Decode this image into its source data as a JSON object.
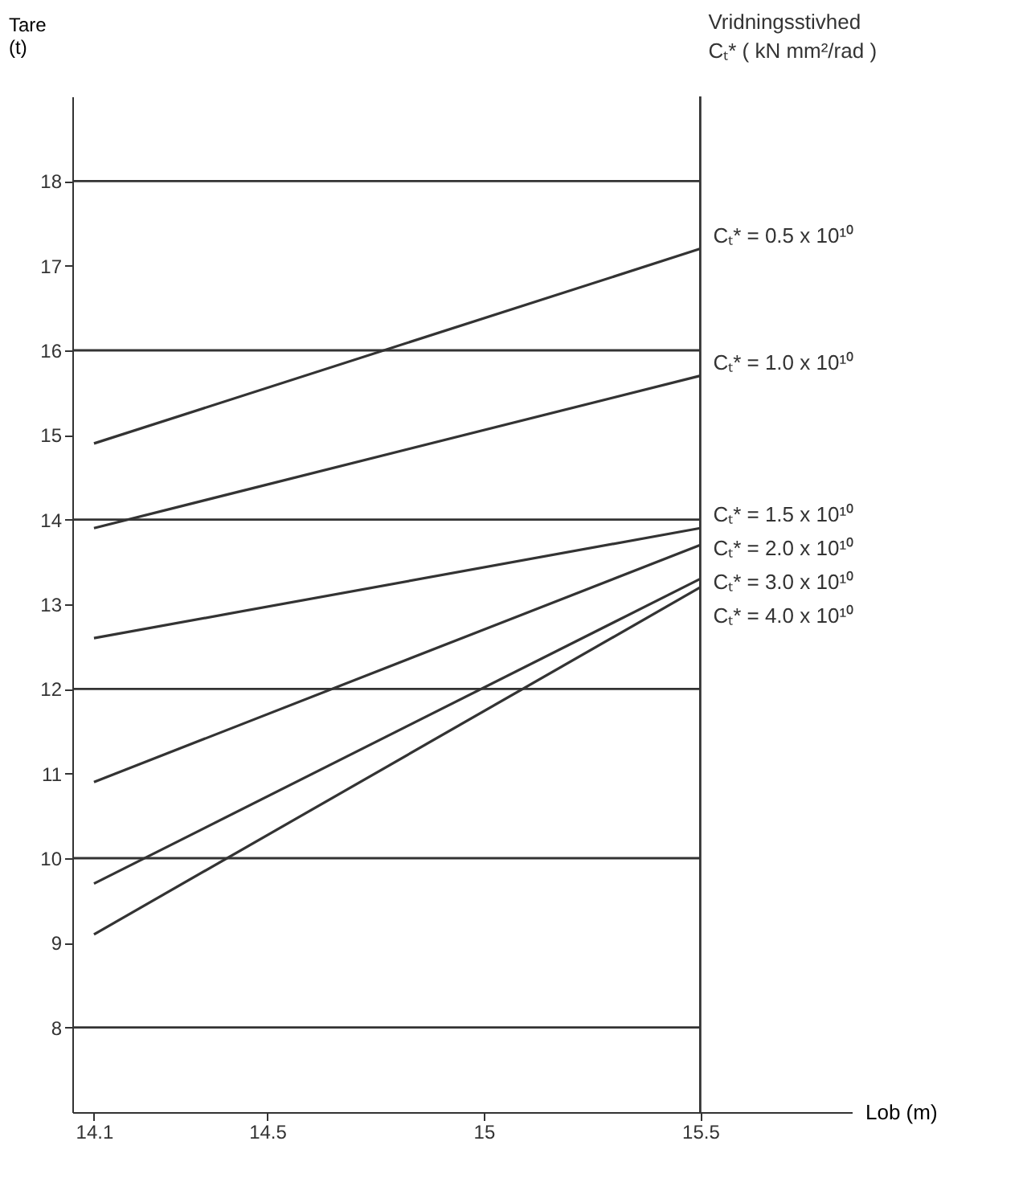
{
  "chart_data": {
    "type": "line",
    "xlabel": "Lob (m)",
    "ylabel": "Tare\n(t)",
    "legend_title": "Vridningsstivhed\nCₜ* ( kN mm²/rad )",
    "x": [
      14.1,
      15.5
    ],
    "series": [
      {
        "name": "Cₜ* = 0.5 x 10¹⁰",
        "color": "#333333",
        "values": [
          14.9,
          17.2
        ]
      },
      {
        "name": "Cₜ* = 1.0 x 10¹⁰",
        "color": "#333333",
        "values": [
          13.9,
          15.7
        ]
      },
      {
        "name": "Cₜ* = 1.5 x 10¹⁰",
        "color": "#333333",
        "values": [
          12.6,
          13.9
        ]
      },
      {
        "name": "Cₜ* = 2.0 x 10¹⁰",
        "color": "#333333",
        "values": [
          10.9,
          13.7
        ]
      },
      {
        "name": "Cₜ* = 3.0 x 10¹⁰",
        "color": "#333333",
        "values": [
          9.7,
          13.3
        ]
      },
      {
        "name": "Cₜ* = 4.0 x 10¹⁰",
        "color": "#333333",
        "values": [
          9.1,
          13.2
        ]
      }
    ],
    "xlim": [
      14.05,
      15.85
    ],
    "ylim": [
      7,
      19
    ],
    "xticks": [
      14.1,
      14.5,
      15,
      15.5
    ],
    "yticks": [
      8,
      9,
      10,
      11,
      12,
      13,
      14,
      15,
      16,
      17,
      18
    ],
    "ref_lines": [
      {
        "axis": "y",
        "value": 8
      },
      {
        "axis": "y",
        "value": 10
      },
      {
        "axis": "y",
        "value": 12
      },
      {
        "axis": "y",
        "value": 14
      },
      {
        "axis": "y",
        "value": 16
      },
      {
        "axis": "y",
        "value": 18
      },
      {
        "axis": "x",
        "value": 15.5
      }
    ],
    "grid": false,
    "legend": false,
    "line_style": "solid",
    "marker": "none"
  }
}
